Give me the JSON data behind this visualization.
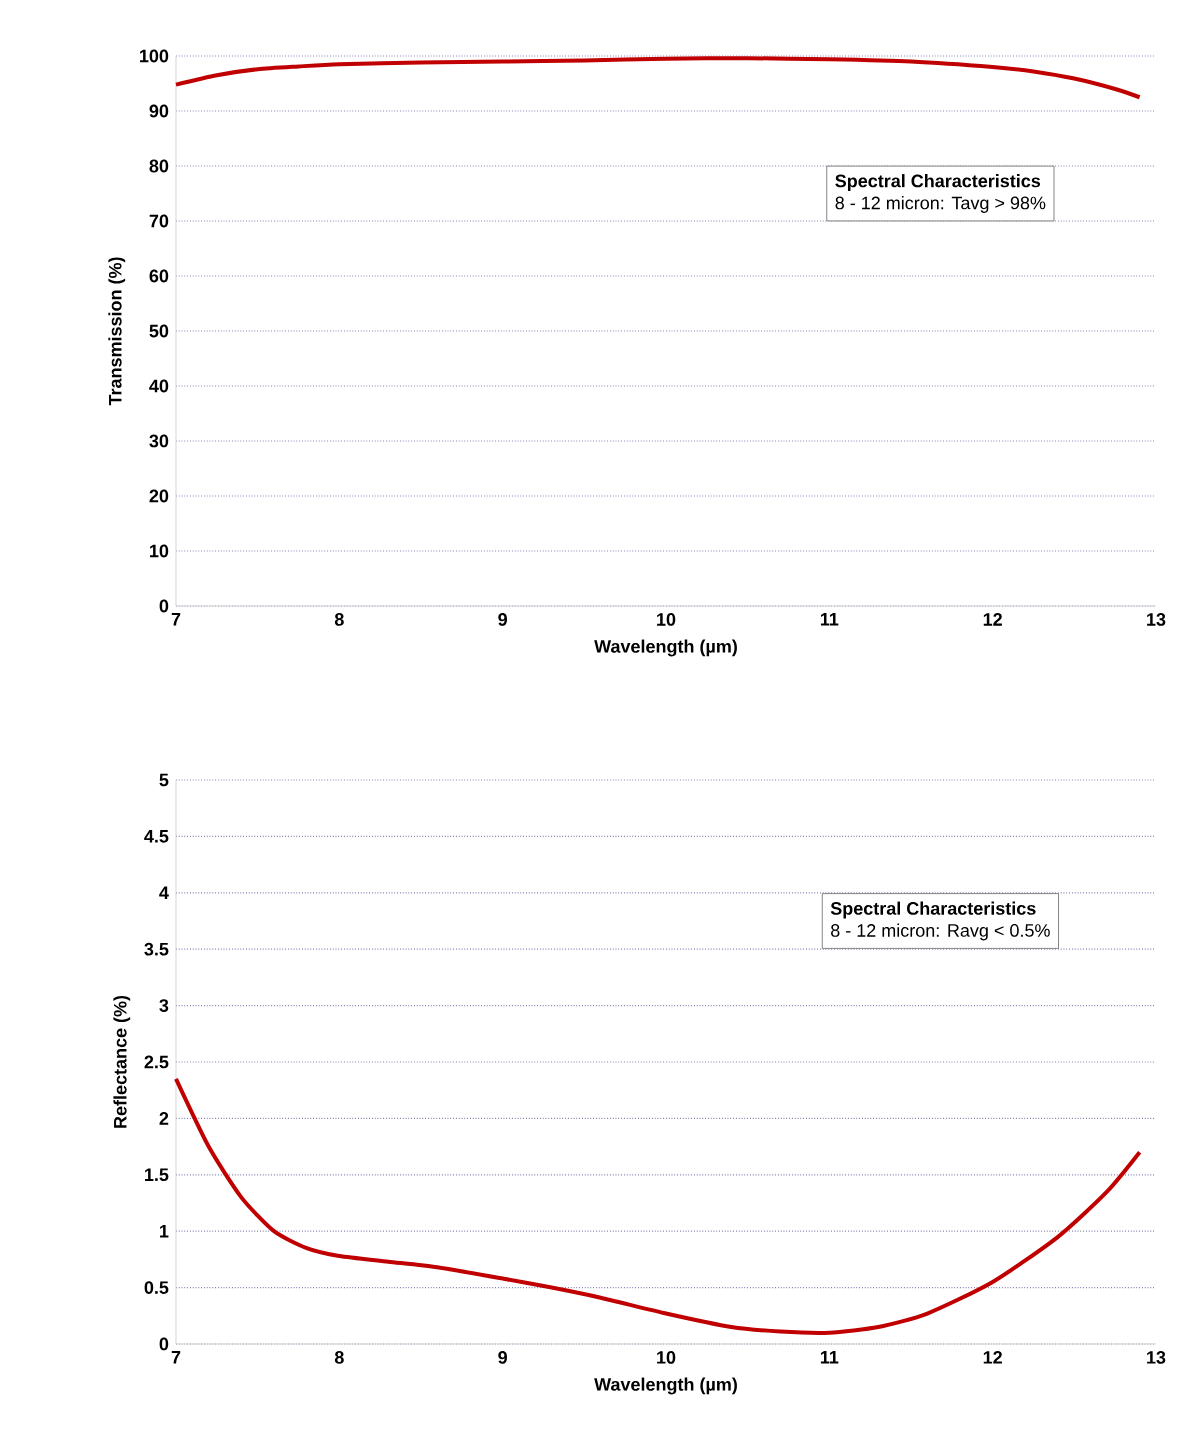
{
  "chart_data": [
    {
      "type": "line",
      "xlabel": "Wavelength (µm)",
      "ylabel": "Transmission (%)",
      "xlim": [
        7,
        13
      ],
      "xticks": [
        7,
        8,
        9,
        10,
        11,
        12,
        13
      ],
      "ylim": [
        0,
        100
      ],
      "yticks": [
        0,
        10,
        20,
        30,
        40,
        50,
        60,
        70,
        80,
        90,
        100
      ],
      "grid": "y",
      "annotations": [
        "Spectral Characteristics",
        "8 - 12 micron: Tavg > 98%"
      ],
      "series": [
        {
          "color": "#c00000",
          "x": [
            7,
            7.25,
            7.5,
            7.75,
            8,
            8.5,
            9,
            9.5,
            10,
            10.5,
            11,
            11.5,
            12,
            12.25,
            12.5,
            12.75,
            12.9
          ],
          "values": [
            94.8,
            96.5,
            97.6,
            98.1,
            98.5,
            98.8,
            99,
            99.2,
            99.5,
            99.6,
            99.4,
            99,
            98,
            97.2,
            95.9,
            94,
            92.5
          ]
        }
      ]
    },
    {
      "type": "line",
      "xlabel": "Wavelength (µm)",
      "ylabel": "Reflectance (%)",
      "xlim": [
        7,
        13
      ],
      "xticks": [
        7,
        8,
        9,
        10,
        11,
        12,
        13
      ],
      "ylim": [
        0,
        5
      ],
      "yticks": [
        0,
        0.5,
        1,
        1.5,
        2,
        2.5,
        3,
        3.5,
        4,
        4.5,
        5
      ],
      "grid": "y",
      "annotations": [
        "Spectral Characteristics",
        "8 - 12 micron: Ravg < 0.5%"
      ],
      "series": [
        {
          "color": "#c00000",
          "x": [
            7,
            7.2,
            7.4,
            7.6,
            7.8,
            8,
            8.3,
            8.6,
            9,
            9.3,
            9.6,
            10,
            10.4,
            10.7,
            11,
            11.3,
            11.6,
            12,
            12.4,
            12.7,
            12.9
          ],
          "values": [
            2.35,
            1.75,
            1.3,
            1.0,
            0.85,
            0.78,
            0.73,
            0.68,
            0.58,
            0.5,
            0.41,
            0.27,
            0.15,
            0.11,
            0.1,
            0.15,
            0.27,
            0.55,
            0.95,
            1.35,
            1.7
          ]
        }
      ]
    }
  ]
}
